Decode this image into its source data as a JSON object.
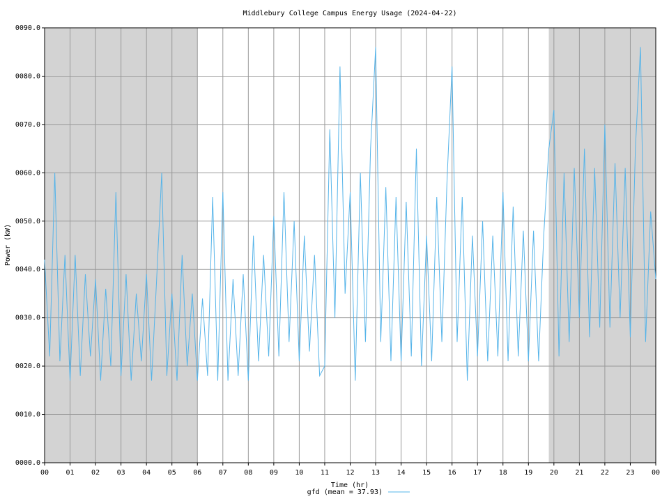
{
  "chart_data": {
    "type": "line",
    "title": "Middlebury College Campus Energy Usage (2024-04-22)",
    "x_label": "Time (hr)",
    "y_label": "Power (kW)",
    "x": [
      0,
      0.2,
      0.4,
      0.6,
      0.8,
      1,
      1.2,
      1.4,
      1.6,
      1.8,
      2,
      2.2,
      2.4,
      2.6,
      2.8,
      3,
      3.2,
      3.4,
      3.6,
      3.8,
      4,
      4.2,
      4.4,
      4.6,
      4.8,
      5,
      5.2,
      5.4,
      5.6,
      5.8,
      6,
      6.2,
      6.4,
      6.6,
      6.8,
      7,
      7.2,
      7.4,
      7.6,
      7.8,
      8,
      8.2,
      8.4,
      8.6,
      8.8,
      9,
      9.2,
      9.4,
      9.6,
      9.8,
      10,
      10.2,
      10.4,
      10.6,
      10.8,
      11,
      11.2,
      11.4,
      11.6,
      11.8,
      12,
      12.2,
      12.4,
      12.6,
      12.8,
      13,
      13.2,
      13.4,
      13.6,
      13.8,
      14,
      14.2,
      14.4,
      14.6,
      14.8,
      15,
      15.2,
      15.4,
      15.6,
      15.8,
      16,
      16.2,
      16.4,
      16.6,
      16.8,
      17,
      17.2,
      17.4,
      17.6,
      17.8,
      18,
      18.2,
      18.4,
      18.6,
      18.8,
      19,
      19.2,
      19.4,
      19.6,
      19.8,
      20,
      20.2,
      20.4,
      20.6,
      20.8,
      21,
      21.2,
      21.4,
      21.6,
      21.8,
      22,
      22.2,
      22.4,
      22.6,
      22.8,
      23,
      23.2,
      23.4,
      23.6,
      23.8,
      24
    ],
    "series": [
      {
        "name": "gfd (mean = 37.93)",
        "color": "#56b4e9",
        "values": [
          42,
          22,
          60,
          21,
          43,
          17,
          43,
          18,
          39,
          22,
          38,
          17,
          36,
          20,
          56,
          18,
          39,
          17,
          35,
          21,
          39,
          17,
          38,
          60,
          18,
          35,
          17,
          43,
          20,
          35,
          17,
          34,
          18,
          55,
          17,
          56,
          17,
          38,
          18,
          39,
          17,
          47,
          21,
          43,
          22,
          51,
          22,
          56,
          25,
          50,
          21,
          47,
          23,
          43,
          18,
          20,
          69,
          30,
          82,
          35,
          56,
          17,
          60,
          25,
          65,
          86,
          25,
          57,
          21,
          55,
          21,
          54,
          22,
          65,
          20,
          47,
          21,
          55,
          25,
          58,
          82,
          25,
          55,
          17,
          47,
          22,
          50,
          21,
          47,
          22,
          56,
          21,
          53,
          22,
          48,
          21,
          48,
          21,
          47,
          65,
          73,
          22,
          60,
          25,
          61,
          30,
          65,
          26,
          61,
          28,
          70,
          28,
          62,
          30,
          61,
          26,
          65,
          86,
          25,
          52,
          38
        ]
      }
    ],
    "xlim": [
      0,
      24
    ],
    "ylim": [
      0,
      90
    ],
    "xticks": [
      {
        "value": 0,
        "label": "00"
      },
      {
        "value": 1,
        "label": "01"
      },
      {
        "value": 2,
        "label": "02"
      },
      {
        "value": 3,
        "label": "03"
      },
      {
        "value": 4,
        "label": "04"
      },
      {
        "value": 5,
        "label": "05"
      },
      {
        "value": 6,
        "label": "06"
      },
      {
        "value": 7,
        "label": "07"
      },
      {
        "value": 8,
        "label": "08"
      },
      {
        "value": 9,
        "label": "09"
      },
      {
        "value": 10,
        "label": "10"
      },
      {
        "value": 11,
        "label": "11"
      },
      {
        "value": 12,
        "label": "12"
      },
      {
        "value": 13,
        "label": "13"
      },
      {
        "value": 14,
        "label": "14"
      },
      {
        "value": 15,
        "label": "15"
      },
      {
        "value": 16,
        "label": "16"
      },
      {
        "value": 17,
        "label": "17"
      },
      {
        "value": 18,
        "label": "18"
      },
      {
        "value": 19,
        "label": "19"
      },
      {
        "value": 20,
        "label": "20"
      },
      {
        "value": 21,
        "label": "21"
      },
      {
        "value": 22,
        "label": "22"
      },
      {
        "value": 23,
        "label": "23"
      },
      {
        "value": 24,
        "label": "00"
      }
    ],
    "yticks": [
      {
        "value": 0,
        "label": "0000.0"
      },
      {
        "value": 10,
        "label": "0010.0"
      },
      {
        "value": 20,
        "label": "0020.0"
      },
      {
        "value": 30,
        "label": "0030.0"
      },
      {
        "value": 40,
        "label": "0040.0"
      },
      {
        "value": 50,
        "label": "0050.0"
      },
      {
        "value": 60,
        "label": "0060.0"
      },
      {
        "value": 70,
        "label": "0070.0"
      },
      {
        "value": 80,
        "label": "0080.0"
      },
      {
        "value": 90,
        "label": "0090.0"
      }
    ],
    "grid": true,
    "shaded_ranges": [
      [
        0,
        6
      ],
      [
        19.8,
        24
      ]
    ],
    "shade_color": "#d3d3d3",
    "legend": "bottom"
  }
}
